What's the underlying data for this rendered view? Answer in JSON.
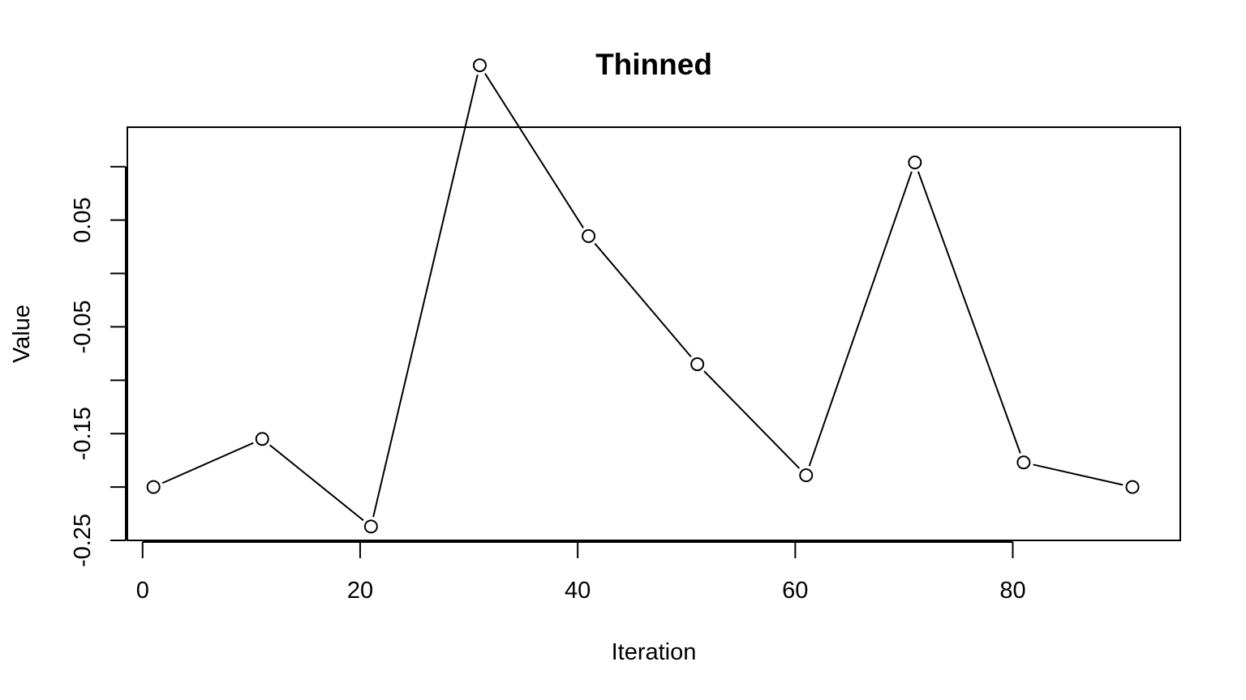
{
  "chart_data": {
    "type": "line",
    "title": "Thinned",
    "xlabel": "Iteration",
    "ylabel": "Value",
    "x": [
      1,
      11,
      21,
      31,
      41,
      51,
      61,
      71,
      81,
      91
    ],
    "series": [
      {
        "values": [
          -0.2,
          -0.155,
          -0.237,
          0.195,
          0.035,
          -0.085,
          -0.189,
          0.104,
          -0.177,
          -0.2
        ]
      }
    ],
    "xlim": [
      -1.4,
      95.4
    ],
    "ylim": [
      -0.25,
      0.137
    ],
    "xticks": [
      0,
      20,
      40,
      60,
      80
    ],
    "xtick_labels": [
      "0",
      "20",
      "40",
      "60",
      "80"
    ],
    "yticks": [
      -0.25,
      -0.2,
      -0.15,
      -0.1,
      -0.05,
      0.0,
      0.05,
      0.1
    ],
    "ytick_labels": [
      "-0.25",
      "",
      "-0.15",
      "",
      "-0.05",
      "",
      "0.05",
      ""
    ],
    "marker": "open-circle",
    "line_color": "#000000",
    "grid": false,
    "legend": false
  }
}
